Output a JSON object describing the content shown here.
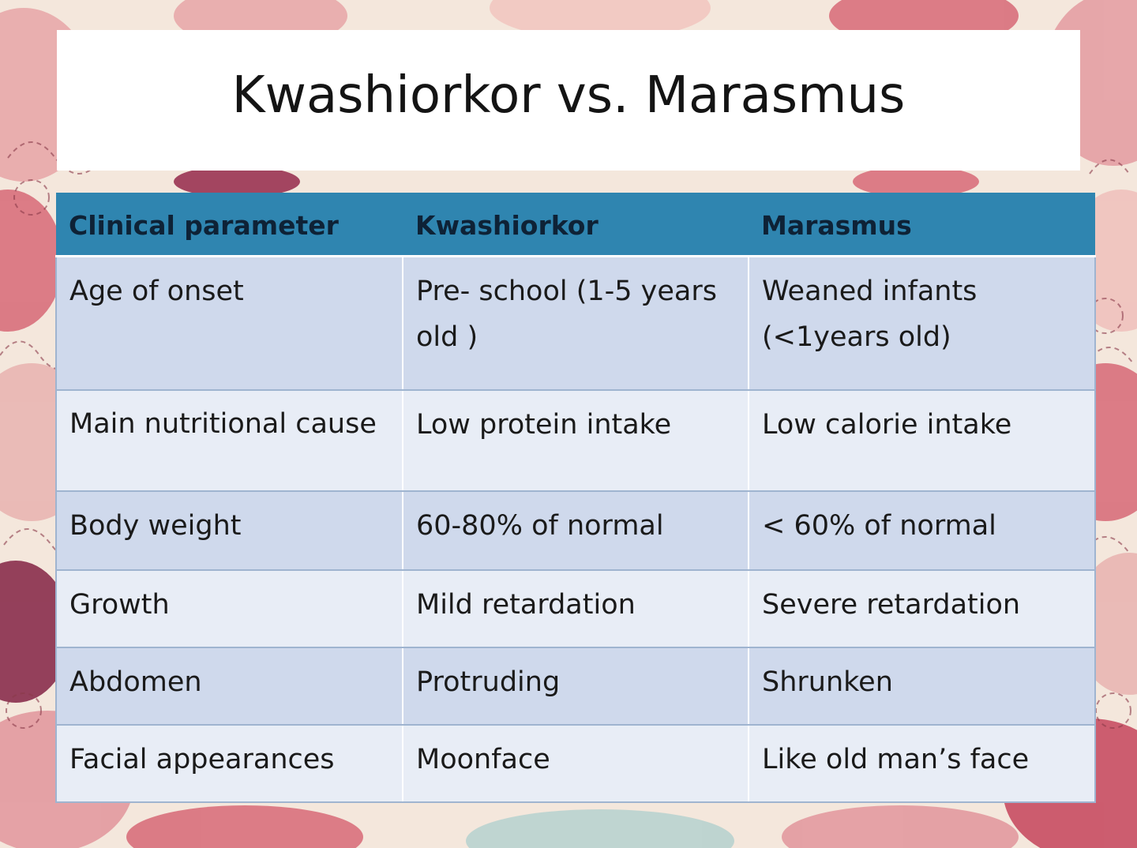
{
  "slide": {
    "title": "Kwashiorkor vs. Marasmus"
  },
  "table": {
    "headers": [
      "Clinical parameter",
      "Kwashiorkor",
      "Marasmus"
    ],
    "rows": [
      [
        "Age of onset",
        "Pre- school (1-5 years old )",
        "Weaned infants (<1years old)"
      ],
      [
        "Main nutritional cause",
        "Low protein intake",
        "Low calorie intake"
      ],
      [
        "Body weight",
        "60-80% of normal",
        "< 60% of normal"
      ],
      [
        "Growth",
        "Mild retardation",
        "Severe retardation"
      ],
      [
        "Abdomen",
        "Protruding",
        "Shrunken"
      ],
      [
        "Facial appearances",
        "Moonface",
        "Like old man’s face"
      ]
    ]
  },
  "colors": {
    "header_bg": "#2f85b0",
    "row_dark": "#cfd9ec",
    "row_light": "#e8edf6",
    "background_pattern": "#d96b7a"
  }
}
